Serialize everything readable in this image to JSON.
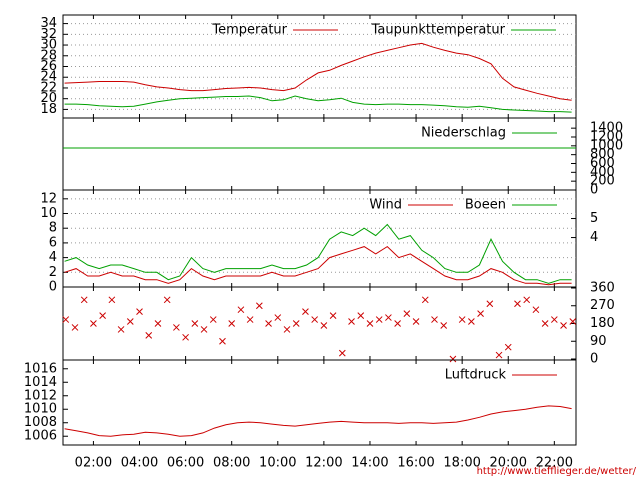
{
  "footer": "http://www.tiefflieger.de/wetter/",
  "chart_data": [
    {
      "type": "line",
      "x": [
        0.75,
        1.25,
        1.75,
        2.25,
        2.75,
        3.25,
        3.75,
        4.25,
        4.75,
        5.25,
        5.75,
        6.25,
        6.75,
        7.25,
        7.75,
        8.25,
        8.75,
        9.25,
        9.75,
        10.25,
        10.75,
        11.25,
        11.75,
        12.25,
        12.75,
        13.25,
        13.75,
        14.25,
        14.75,
        15.25,
        15.75,
        16.25,
        16.75,
        17.25,
        17.75,
        18.25,
        18.75,
        19.25,
        19.75,
        20.25,
        20.75,
        21.25,
        21.75,
        22.25,
        22.75
      ],
      "series": [
        {
          "name": "Temperatur",
          "color": "#cc0000",
          "values": [
            22.9,
            23.0,
            23.1,
            23.2,
            23.2,
            23.2,
            23.1,
            22.6,
            22.2,
            22.0,
            21.7,
            21.5,
            21.5,
            21.7,
            21.9,
            22.0,
            22.1,
            22.0,
            21.7,
            21.5,
            22.0,
            23.5,
            24.8,
            25.3,
            26.2,
            27.0,
            27.8,
            28.5,
            29.0,
            29.5,
            30.0,
            30.3,
            29.6,
            29.0,
            28.5,
            28.2,
            27.5,
            26.5,
            23.8,
            22.2,
            21.6,
            21.0,
            20.5,
            20.0,
            19.7
          ]
        },
        {
          "name": "Taupunkttemperatur",
          "color": "#00a000",
          "values": [
            19.0,
            19.0,
            18.9,
            18.7,
            18.6,
            18.5,
            18.6,
            19.0,
            19.4,
            19.7,
            20.0,
            20.1,
            20.2,
            20.3,
            20.4,
            20.4,
            20.5,
            20.2,
            19.6,
            19.8,
            20.5,
            20.0,
            19.6,
            19.8,
            20.1,
            19.3,
            19.0,
            18.9,
            19.0,
            19.0,
            18.9,
            18.9,
            18.8,
            18.7,
            18.5,
            18.4,
            18.6,
            18.3,
            18.0,
            17.9,
            17.8,
            17.7,
            17.6,
            17.6,
            17.5
          ]
        }
      ],
      "xlim": [
        0.68,
        22.94
      ],
      "ylim": [
        16.4,
        35.6
      ],
      "yticks": [
        18,
        20,
        22,
        24,
        26,
        28,
        30,
        32,
        34
      ],
      "grid": true
    },
    {
      "type": "line",
      "x": [
        0.68,
        22.94
      ],
      "series": [
        {
          "name": "Niederschlag",
          "color": "#00a000",
          "values": [
            950,
            950
          ]
        }
      ],
      "xlim": [
        0.68,
        22.94
      ],
      "ylim": [
        0,
        1630
      ],
      "yticks": [
        0,
        200,
        400,
        600,
        800,
        1000,
        1200,
        1400
      ],
      "grid": false
    },
    {
      "type": "line",
      "x": [
        0.75,
        1.25,
        1.75,
        2.25,
        2.75,
        3.25,
        3.75,
        4.25,
        4.75,
        5.25,
        5.75,
        6.25,
        6.75,
        7.25,
        7.75,
        8.25,
        8.75,
        9.25,
        9.75,
        10.25,
        10.75,
        11.25,
        11.75,
        12.25,
        12.75,
        13.25,
        13.75,
        14.25,
        14.75,
        15.25,
        15.75,
        16.25,
        16.75,
        17.25,
        17.75,
        18.25,
        18.75,
        19.25,
        19.75,
        20.25,
        20.75,
        21.25,
        21.75,
        22.25,
        22.75
      ],
      "series": [
        {
          "name": "Wind",
          "color": "#cc0000",
          "values": [
            2,
            2.5,
            1.5,
            1.5,
            2,
            1.5,
            1.5,
            1,
            1,
            0.5,
            1,
            2.5,
            1.5,
            1,
            1.5,
            1.5,
            1.5,
            1.5,
            2,
            1.5,
            1.5,
            2,
            2.5,
            4,
            4.5,
            5,
            5.5,
            4.5,
            5.5,
            4,
            4.5,
            3.5,
            2.5,
            1.5,
            1,
            1,
            1.5,
            2.5,
            2,
            1,
            0.5,
            0.5,
            0.3,
            0.5,
            0.5
          ]
        },
        {
          "name": "Boeen",
          "color": "#00a000",
          "values": [
            3.5,
            4,
            3,
            2.5,
            3,
            3,
            2.5,
            2,
            2,
            1,
            1.5,
            4,
            2.5,
            2,
            2.5,
            2.5,
            2.5,
            2.5,
            3,
            2.5,
            2.5,
            3,
            4,
            6.5,
            7.5,
            7,
            8,
            7,
            8.5,
            6.5,
            7,
            5,
            4,
            2.5,
            2,
            2,
            3,
            6.5,
            3.5,
            2,
            1,
            1,
            0.5,
            1,
            1
          ]
        }
      ],
      "xlim": [
        0.68,
        22.94
      ],
      "ylim": [
        0,
        13.2
      ],
      "yticks": [
        0,
        2,
        4,
        6,
        8,
        10,
        12
      ],
      "y2lim": [
        1.4,
        6.5
      ],
      "y2ticks": [
        4,
        5
      ],
      "grid": true
    },
    {
      "type": "scatter",
      "x": [
        0.8,
        1.2,
        1.6,
        2.0,
        2.4,
        2.8,
        3.2,
        3.6,
        4.0,
        4.4,
        4.8,
        5.2,
        5.6,
        6.0,
        6.4,
        6.8,
        7.2,
        7.6,
        8.0,
        8.4,
        8.8,
        9.2,
        9.6,
        10.0,
        10.4,
        10.8,
        11.2,
        11.6,
        12.0,
        12.4,
        12.8,
        13.2,
        13.6,
        14.0,
        14.4,
        14.8,
        15.2,
        15.6,
        16.0,
        16.4,
        16.8,
        17.2,
        17.6,
        18.0,
        18.4,
        18.8,
        19.2,
        19.6,
        20.0,
        20.4,
        20.8,
        21.2,
        21.6,
        22.0,
        22.4,
        22.8
      ],
      "values": [
        200,
        160,
        300,
        180,
        220,
        300,
        150,
        190,
        240,
        120,
        180,
        300,
        160,
        110,
        180,
        150,
        200,
        90,
        180,
        250,
        200,
        270,
        180,
        210,
        150,
        180,
        240,
        200,
        170,
        220,
        30,
        190,
        220,
        180,
        200,
        210,
        180,
        230,
        190,
        300,
        200,
        170,
        0,
        200,
        190,
        230,
        280,
        20,
        60,
        280,
        300,
        250,
        180,
        200,
        170,
        190
      ],
      "color": "#cc0000",
      "xlim": [
        0.68,
        22.94
      ],
      "ylim": [
        -5,
        365
      ],
      "yticks": [
        0,
        90,
        180,
        270,
        360
      ],
      "grid": false
    },
    {
      "type": "line",
      "x": [
        0.75,
        1.25,
        1.75,
        2.25,
        2.75,
        3.25,
        3.75,
        4.25,
        4.75,
        5.25,
        5.75,
        6.25,
        6.75,
        7.25,
        7.75,
        8.25,
        8.75,
        9.25,
        9.75,
        10.25,
        10.75,
        11.25,
        11.75,
        12.25,
        12.75,
        13.25,
        13.75,
        14.25,
        14.75,
        15.25,
        15.75,
        16.25,
        16.75,
        17.25,
        17.75,
        18.25,
        18.75,
        19.25,
        19.75,
        20.25,
        20.75,
        21.25,
        21.75,
        22.25,
        22.75
      ],
      "series": [
        {
          "name": "Luftdruck",
          "color": "#cc0000",
          "values": [
            1007.1,
            1006.8,
            1006.5,
            1006.1,
            1006.0,
            1006.2,
            1006.3,
            1006.6,
            1006.5,
            1006.3,
            1006.0,
            1006.1,
            1006.5,
            1007.2,
            1007.7,
            1008.0,
            1008.1,
            1008.0,
            1007.8,
            1007.6,
            1007.5,
            1007.7,
            1007.9,
            1008.1,
            1008.2,
            1008.1,
            1008.0,
            1008.0,
            1008.0,
            1007.9,
            1008.0,
            1008.0,
            1007.9,
            1008.0,
            1008.1,
            1008.4,
            1008.8,
            1009.3,
            1009.6,
            1009.8,
            1010.0,
            1010.3,
            1010.5,
            1010.4,
            1010.1
          ]
        }
      ],
      "xlim": [
        0.68,
        22.94
      ],
      "ylim": [
        1004.7,
        1017.3
      ],
      "yticks": [
        1006,
        1008,
        1010,
        1012,
        1014,
        1016
      ],
      "grid": false,
      "xticks": [
        {
          "value": 2,
          "label": "02:00"
        },
        {
          "value": 4,
          "label": "04:00"
        },
        {
          "value": 6,
          "label": "06:00"
        },
        {
          "value": 8,
          "label": "08:00"
        },
        {
          "value": 10,
          "label": "10:00"
        },
        {
          "value": 12,
          "label": "12:00"
        },
        {
          "value": 14,
          "label": "14:00"
        },
        {
          "value": 16,
          "label": "16:00"
        },
        {
          "value": 18,
          "label": "18:00"
        },
        {
          "value": 20,
          "label": "20:00"
        },
        {
          "value": 22,
          "label": "22:00"
        }
      ]
    }
  ]
}
